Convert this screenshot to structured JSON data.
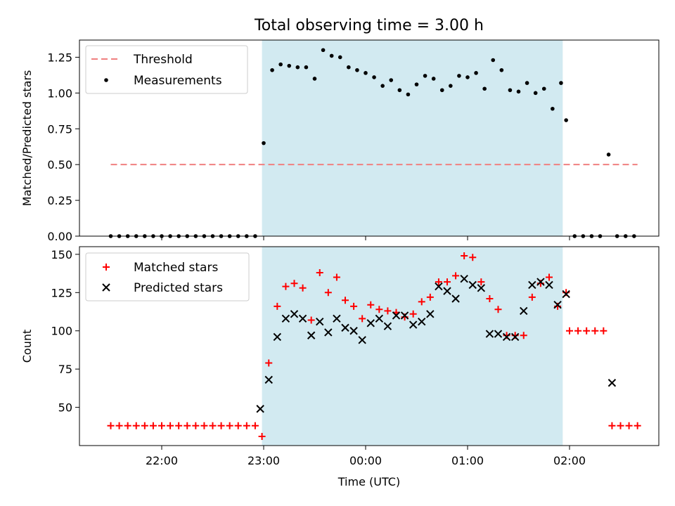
{
  "chart_data": {
    "title": "Total observing time = 3.00 h",
    "xlabel": "Time (UTC)",
    "x_ticks": [
      "22:00",
      "23:00",
      "00:00",
      "01:00",
      "02:00"
    ],
    "observing_window": {
      "start": "22:59",
      "end": "01:56"
    },
    "colors": {
      "window": "#add8e6",
      "threshold": "#f08080",
      "matched": "#ff0000",
      "predicted": "#000000"
    },
    "top": {
      "type": "scatter",
      "ylabel": "Matched/Predicted stars",
      "ylim": [
        0,
        1.37
      ],
      "y_ticks": [
        "0.00",
        "0.25",
        "0.50",
        "0.75",
        "1.00",
        "1.25"
      ],
      "legend": [
        "Threshold",
        "Measurements"
      ],
      "threshold": {
        "value": 0.5,
        "from": "21:30",
        "to": "02:40"
      },
      "measurements": [
        [
          "21:30",
          0
        ],
        [
          "21:35",
          0
        ],
        [
          "21:40",
          0
        ],
        [
          "21:45",
          0
        ],
        [
          "21:50",
          0
        ],
        [
          "21:55",
          0
        ],
        [
          "22:00",
          0
        ],
        [
          "22:05",
          0
        ],
        [
          "22:10",
          0
        ],
        [
          "22:15",
          0
        ],
        [
          "22:20",
          0
        ],
        [
          "22:25",
          0
        ],
        [
          "22:30",
          0
        ],
        [
          "22:35",
          0
        ],
        [
          "22:40",
          0
        ],
        [
          "22:45",
          0
        ],
        [
          "22:50",
          0
        ],
        [
          "22:55",
          0
        ],
        [
          "23:00",
          0.65
        ],
        [
          "23:05",
          1.16
        ],
        [
          "23:10",
          1.2
        ],
        [
          "23:15",
          1.19
        ],
        [
          "23:20",
          1.18
        ],
        [
          "23:25",
          1.18
        ],
        [
          "23:30",
          1.1
        ],
        [
          "23:35",
          1.3
        ],
        [
          "23:40",
          1.26
        ],
        [
          "23:45",
          1.25
        ],
        [
          "23:50",
          1.18
        ],
        [
          "23:55",
          1.16
        ],
        [
          "00:00",
          1.14
        ],
        [
          "00:05",
          1.11
        ],
        [
          "00:10",
          1.05
        ],
        [
          "00:15",
          1.09
        ],
        [
          "00:20",
          1.02
        ],
        [
          "00:25",
          0.99
        ],
        [
          "00:30",
          1.06
        ],
        [
          "00:35",
          1.12
        ],
        [
          "00:40",
          1.1
        ],
        [
          "00:45",
          1.02
        ],
        [
          "00:50",
          1.05
        ],
        [
          "00:55",
          1.12
        ],
        [
          "01:00",
          1.11
        ],
        [
          "01:05",
          1.14
        ],
        [
          "01:10",
          1.03
        ],
        [
          "01:15",
          1.23
        ],
        [
          "01:20",
          1.16
        ],
        [
          "01:25",
          1.02
        ],
        [
          "01:30",
          1.01
        ],
        [
          "01:35",
          1.07
        ],
        [
          "01:40",
          1.0
        ],
        [
          "01:45",
          1.03
        ],
        [
          "01:50",
          0.89
        ],
        [
          "01:55",
          1.07
        ],
        [
          "01:58",
          0.81
        ],
        [
          "02:03",
          0
        ],
        [
          "02:08",
          0
        ],
        [
          "02:13",
          0
        ],
        [
          "02:18",
          0
        ],
        [
          "02:23",
          0.57
        ],
        [
          "02:28",
          0
        ],
        [
          "02:33",
          0
        ],
        [
          "02:38",
          0
        ]
      ]
    },
    "bottom": {
      "type": "scatter",
      "ylabel": "Count",
      "ylim": [
        25,
        155
      ],
      "y_ticks": [
        "50",
        "75",
        "100",
        "125",
        "150"
      ],
      "legend": [
        "Matched stars",
        "Predicted stars"
      ],
      "matched": [
        [
          "21:30",
          38
        ],
        [
          "21:35",
          38
        ],
        [
          "21:40",
          38
        ],
        [
          "21:45",
          38
        ],
        [
          "21:50",
          38
        ],
        [
          "21:55",
          38
        ],
        [
          "22:00",
          38
        ],
        [
          "22:05",
          38
        ],
        [
          "22:10",
          38
        ],
        [
          "22:15",
          38
        ],
        [
          "22:20",
          38
        ],
        [
          "22:25",
          38
        ],
        [
          "22:30",
          38
        ],
        [
          "22:35",
          38
        ],
        [
          "22:40",
          38
        ],
        [
          "22:45",
          38
        ],
        [
          "22:50",
          38
        ],
        [
          "22:55",
          38
        ],
        [
          "22:59",
          31
        ],
        [
          "23:03",
          79
        ],
        [
          "23:08",
          116
        ],
        [
          "23:13",
          129
        ],
        [
          "23:18",
          131
        ],
        [
          "23:23",
          128
        ],
        [
          "23:28",
          107
        ],
        [
          "23:33",
          138
        ],
        [
          "23:38",
          125
        ],
        [
          "23:43",
          135
        ],
        [
          "23:48",
          120
        ],
        [
          "23:53",
          116
        ],
        [
          "23:58",
          108
        ],
        [
          "00:03",
          117
        ],
        [
          "00:08",
          114
        ],
        [
          "00:13",
          113
        ],
        [
          "00:18",
          112
        ],
        [
          "00:23",
          109
        ],
        [
          "00:28",
          111
        ],
        [
          "00:33",
          119
        ],
        [
          "00:38",
          122
        ],
        [
          "00:43",
          132
        ],
        [
          "00:48",
          132
        ],
        [
          "00:53",
          136
        ],
        [
          "00:58",
          149
        ],
        [
          "01:03",
          148
        ],
        [
          "01:08",
          132
        ],
        [
          "01:13",
          121
        ],
        [
          "01:18",
          114
        ],
        [
          "01:23",
          97
        ],
        [
          "01:28",
          97
        ],
        [
          "01:33",
          97
        ],
        [
          "01:38",
          122
        ],
        [
          "01:43",
          131
        ],
        [
          "01:48",
          135
        ],
        [
          "01:53",
          116
        ],
        [
          "01:58",
          125
        ],
        [
          "02:00",
          100
        ],
        [
          "02:05",
          100
        ],
        [
          "02:10",
          100
        ],
        [
          "02:15",
          100
        ],
        [
          "02:20",
          100
        ],
        [
          "02:25",
          38
        ],
        [
          "02:30",
          38
        ],
        [
          "02:35",
          38
        ],
        [
          "02:40",
          38
        ]
      ],
      "predicted": [
        [
          "22:58",
          49
        ],
        [
          "23:03",
          68
        ],
        [
          "23:08",
          96
        ],
        [
          "23:13",
          108
        ],
        [
          "23:18",
          111
        ],
        [
          "23:23",
          108
        ],
        [
          "23:28",
          97
        ],
        [
          "23:33",
          106
        ],
        [
          "23:38",
          99
        ],
        [
          "23:43",
          108
        ],
        [
          "23:48",
          102
        ],
        [
          "23:53",
          100
        ],
        [
          "23:58",
          94
        ],
        [
          "00:03",
          105
        ],
        [
          "00:08",
          108
        ],
        [
          "00:13",
          103
        ],
        [
          "00:18",
          110
        ],
        [
          "00:23",
          110
        ],
        [
          "00:28",
          104
        ],
        [
          "00:33",
          106
        ],
        [
          "00:38",
          111
        ],
        [
          "00:43",
          129
        ],
        [
          "00:48",
          126
        ],
        [
          "00:53",
          121
        ],
        [
          "00:58",
          134
        ],
        [
          "01:03",
          130
        ],
        [
          "01:08",
          128
        ],
        [
          "01:13",
          98
        ],
        [
          "01:18",
          98
        ],
        [
          "01:23",
          96
        ],
        [
          "01:28",
          96
        ],
        [
          "01:33",
          113
        ],
        [
          "01:38",
          130
        ],
        [
          "01:43",
          132
        ],
        [
          "01:48",
          130
        ],
        [
          "01:53",
          117
        ],
        [
          "01:58",
          124
        ],
        [
          "02:25",
          66
        ]
      ]
    }
  }
}
